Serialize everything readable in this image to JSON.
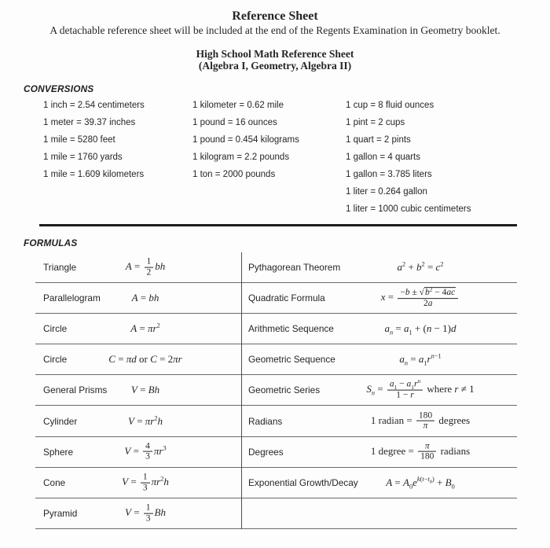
{
  "header": {
    "title": "Reference Sheet",
    "subtitle": "A detachable reference sheet will be included at the end of the Regents Examination in Geometry booklet.",
    "sheet_title_line1": "High School Math Reference Sheet",
    "sheet_title_line2": "(Algebra I, Geometry, Algebra II)"
  },
  "conversions": {
    "heading": "CONVERSIONS",
    "columns": [
      [
        "1 inch = 2.54 centimeters",
        "1 meter = 39.37 inches",
        "1 mile = 5280 feet",
        "1 mile = 1760 yards",
        "1 mile = 1.609 kilometers"
      ],
      [
        "1 kilometer = 0.62 mile",
        "1 pound = 16 ounces",
        "1 pound = 0.454 kilograms",
        "1 kilogram = 2.2 pounds",
        "1 ton = 2000 pounds"
      ],
      [
        "1 cup = 8 fluid ounces",
        "1 pint = 2 cups",
        "1 quart = 2 pints",
        "1 gallon = 4 quarts",
        "1 gallon = 3.785 liters",
        "1 liter = 0.264 gallon",
        "1 liter = 1000 cubic centimeters"
      ]
    ]
  },
  "formulas": {
    "heading": "FORMULAS",
    "left": [
      {
        "label": "Triangle",
        "formula": [
          {
            "t": "v",
            "x": "A"
          },
          {
            "t": "n",
            "x": " = "
          },
          {
            "t": "f",
            "n": [
              {
                "t": "n",
                "x": "1"
              }
            ],
            "d": [
              {
                "t": "n",
                "x": "2"
              }
            ]
          },
          {
            "t": "v",
            "x": "bh"
          }
        ]
      },
      {
        "label": "Parallelogram",
        "formula": [
          {
            "t": "v",
            "x": "A"
          },
          {
            "t": "n",
            "x": " = "
          },
          {
            "t": "v",
            "x": "bh"
          }
        ]
      },
      {
        "label": "Circle",
        "formula": [
          {
            "t": "v",
            "x": "A"
          },
          {
            "t": "n",
            "x": " = "
          },
          {
            "t": "v",
            "x": "πr"
          },
          {
            "t": "sup",
            "c": [
              {
                "t": "n",
                "x": "2"
              }
            ]
          }
        ]
      },
      {
        "label": "Circle",
        "formula": [
          {
            "t": "v",
            "x": "C"
          },
          {
            "t": "n",
            "x": " = "
          },
          {
            "t": "v",
            "x": "πd"
          },
          {
            "t": "n",
            "x": " or "
          },
          {
            "t": "v",
            "x": "C"
          },
          {
            "t": "n",
            "x": " = 2"
          },
          {
            "t": "v",
            "x": "πr"
          }
        ]
      },
      {
        "label": "General Prisms",
        "formula": [
          {
            "t": "v",
            "x": "V"
          },
          {
            "t": "n",
            "x": " = "
          },
          {
            "t": "v",
            "x": "Bh"
          }
        ]
      },
      {
        "label": "Cylinder",
        "formula": [
          {
            "t": "v",
            "x": "V"
          },
          {
            "t": "n",
            "x": " = "
          },
          {
            "t": "v",
            "x": "πr"
          },
          {
            "t": "sup",
            "c": [
              {
                "t": "n",
                "x": "2"
              }
            ]
          },
          {
            "t": "v",
            "x": "h"
          }
        ]
      },
      {
        "label": "Sphere",
        "formula": [
          {
            "t": "v",
            "x": "V"
          },
          {
            "t": "n",
            "x": " = "
          },
          {
            "t": "f",
            "n": [
              {
                "t": "n",
                "x": "4"
              }
            ],
            "d": [
              {
                "t": "n",
                "x": "3"
              }
            ]
          },
          {
            "t": "v",
            "x": "πr"
          },
          {
            "t": "sup",
            "c": [
              {
                "t": "n",
                "x": "3"
              }
            ]
          }
        ]
      },
      {
        "label": "Cone",
        "formula": [
          {
            "t": "v",
            "x": "V"
          },
          {
            "t": "n",
            "x": " = "
          },
          {
            "t": "f",
            "n": [
              {
                "t": "n",
                "x": "1"
              }
            ],
            "d": [
              {
                "t": "n",
                "x": "3"
              }
            ]
          },
          {
            "t": "v",
            "x": "πr"
          },
          {
            "t": "sup",
            "c": [
              {
                "t": "n",
                "x": "2"
              }
            ]
          },
          {
            "t": "v",
            "x": "h"
          }
        ]
      },
      {
        "label": "Pyramid",
        "formula": [
          {
            "t": "v",
            "x": "V"
          },
          {
            "t": "n",
            "x": " = "
          },
          {
            "t": "f",
            "n": [
              {
                "t": "n",
                "x": "1"
              }
            ],
            "d": [
              {
                "t": "n",
                "x": "3"
              }
            ]
          },
          {
            "t": "v",
            "x": "Bh"
          }
        ]
      }
    ],
    "right": [
      {
        "label": "Pythagorean Theorem",
        "formula": [
          {
            "t": "v",
            "x": "a"
          },
          {
            "t": "sup",
            "c": [
              {
                "t": "n",
                "x": "2"
              }
            ]
          },
          {
            "t": "n",
            "x": " + "
          },
          {
            "t": "v",
            "x": "b"
          },
          {
            "t": "sup",
            "c": [
              {
                "t": "n",
                "x": "2"
              }
            ]
          },
          {
            "t": "n",
            "x": " = "
          },
          {
            "t": "v",
            "x": "c"
          },
          {
            "t": "sup",
            "c": [
              {
                "t": "n",
                "x": "2"
              }
            ]
          }
        ]
      },
      {
        "label": "Quadratic Formula",
        "formula": [
          {
            "t": "v",
            "x": "x"
          },
          {
            "t": "n",
            "x": " = "
          },
          {
            "t": "f",
            "n": [
              {
                "t": "n",
                "x": "−"
              },
              {
                "t": "v",
                "x": "b"
              },
              {
                "t": "n",
                "x": " ± "
              },
              {
                "t": "sq",
                "c": [
                  {
                    "t": "v",
                    "x": "b"
                  },
                  {
                    "t": "sup",
                    "c": [
                      {
                        "t": "n",
                        "x": "2"
                      }
                    ]
                  },
                  {
                    "t": "n",
                    "x": " − 4"
                  },
                  {
                    "t": "v",
                    "x": "ac"
                  }
                ]
              }
            ],
            "d": [
              {
                "t": "n",
                "x": "2"
              },
              {
                "t": "v",
                "x": "a"
              }
            ]
          }
        ]
      },
      {
        "label": "Arithmetic Sequence",
        "formula": [
          {
            "t": "v",
            "x": "a"
          },
          {
            "t": "sub",
            "c": [
              {
                "t": "v",
                "x": "n"
              }
            ]
          },
          {
            "t": "n",
            "x": " = "
          },
          {
            "t": "v",
            "x": "a"
          },
          {
            "t": "sub",
            "c": [
              {
                "t": "n",
                "x": "1"
              }
            ]
          },
          {
            "t": "n",
            "x": " + ("
          },
          {
            "t": "v",
            "x": "n"
          },
          {
            "t": "n",
            "x": " − 1)"
          },
          {
            "t": "v",
            "x": "d"
          }
        ]
      },
      {
        "label": "Geometric Sequence",
        "formula": [
          {
            "t": "v",
            "x": "a"
          },
          {
            "t": "sub",
            "c": [
              {
                "t": "v",
                "x": "n"
              }
            ]
          },
          {
            "t": "n",
            "x": " = "
          },
          {
            "t": "v",
            "x": "a"
          },
          {
            "t": "sub",
            "c": [
              {
                "t": "n",
                "x": "1"
              }
            ]
          },
          {
            "t": "v",
            "x": "r"
          },
          {
            "t": "sup",
            "c": [
              {
                "t": "v",
                "x": "n"
              },
              {
                "t": "n",
                "x": "−1"
              }
            ]
          }
        ]
      },
      {
        "label": "Geometric Series",
        "formula": [
          {
            "t": "v",
            "x": "S"
          },
          {
            "t": "sub",
            "c": [
              {
                "t": "v",
                "x": "n"
              }
            ]
          },
          {
            "t": "n",
            "x": " = "
          },
          {
            "t": "f",
            "n": [
              {
                "t": "v",
                "x": "a"
              },
              {
                "t": "sub",
                "c": [
                  {
                    "t": "n",
                    "x": "1"
                  }
                ]
              },
              {
                "t": "n",
                "x": " − "
              },
              {
                "t": "v",
                "x": "a"
              },
              {
                "t": "sub",
                "c": [
                  {
                    "t": "n",
                    "x": "1"
                  }
                ]
              },
              {
                "t": "v",
                "x": "r"
              },
              {
                "t": "sup",
                "c": [
                  {
                    "t": "v",
                    "x": "n"
                  }
                ]
              }
            ],
            "d": [
              {
                "t": "n",
                "x": "1 − "
              },
              {
                "t": "v",
                "x": "r"
              }
            ]
          },
          {
            "t": "n",
            "x": " where "
          },
          {
            "t": "v",
            "x": "r"
          },
          {
            "t": "n",
            "x": " ≠ 1"
          }
        ]
      },
      {
        "label": "Radians",
        "formula": [
          {
            "t": "n",
            "x": "1 radian = "
          },
          {
            "t": "f",
            "n": [
              {
                "t": "n",
                "x": "180"
              }
            ],
            "d": [
              {
                "t": "v",
                "x": "π"
              }
            ]
          },
          {
            "t": "n",
            "x": " degrees"
          }
        ]
      },
      {
        "label": "Degrees",
        "formula": [
          {
            "t": "n",
            "x": "1 degree = "
          },
          {
            "t": "f",
            "n": [
              {
                "t": "v",
                "x": "π"
              }
            ],
            "d": [
              {
                "t": "n",
                "x": "180"
              }
            ]
          },
          {
            "t": "n",
            "x": " radians"
          }
        ]
      },
      {
        "label": "Exponential Growth/Decay",
        "formula": [
          {
            "t": "v",
            "x": "A"
          },
          {
            "t": "n",
            "x": " = "
          },
          {
            "t": "v",
            "x": "A"
          },
          {
            "t": "sub",
            "c": [
              {
                "t": "n",
                "x": "0"
              }
            ]
          },
          {
            "t": "v",
            "x": "e"
          },
          {
            "t": "sup",
            "c": [
              {
                "t": "v",
                "x": "k"
              },
              {
                "t": "n",
                "x": "("
              },
              {
                "t": "v",
                "x": "t"
              },
              {
                "t": "n",
                "x": "−"
              },
              {
                "t": "v",
                "x": "t"
              },
              {
                "t": "sub",
                "c": [
                  {
                    "t": "n",
                    "x": "0"
                  }
                ]
              },
              {
                "t": "n",
                "x": ")"
              }
            ]
          },
          {
            "t": "n",
            "x": " + "
          },
          {
            "t": "v",
            "x": "B"
          },
          {
            "t": "sub",
            "c": [
              {
                "t": "n",
                "x": "0"
              }
            ]
          }
        ]
      },
      {
        "label": "",
        "formula": []
      }
    ]
  }
}
